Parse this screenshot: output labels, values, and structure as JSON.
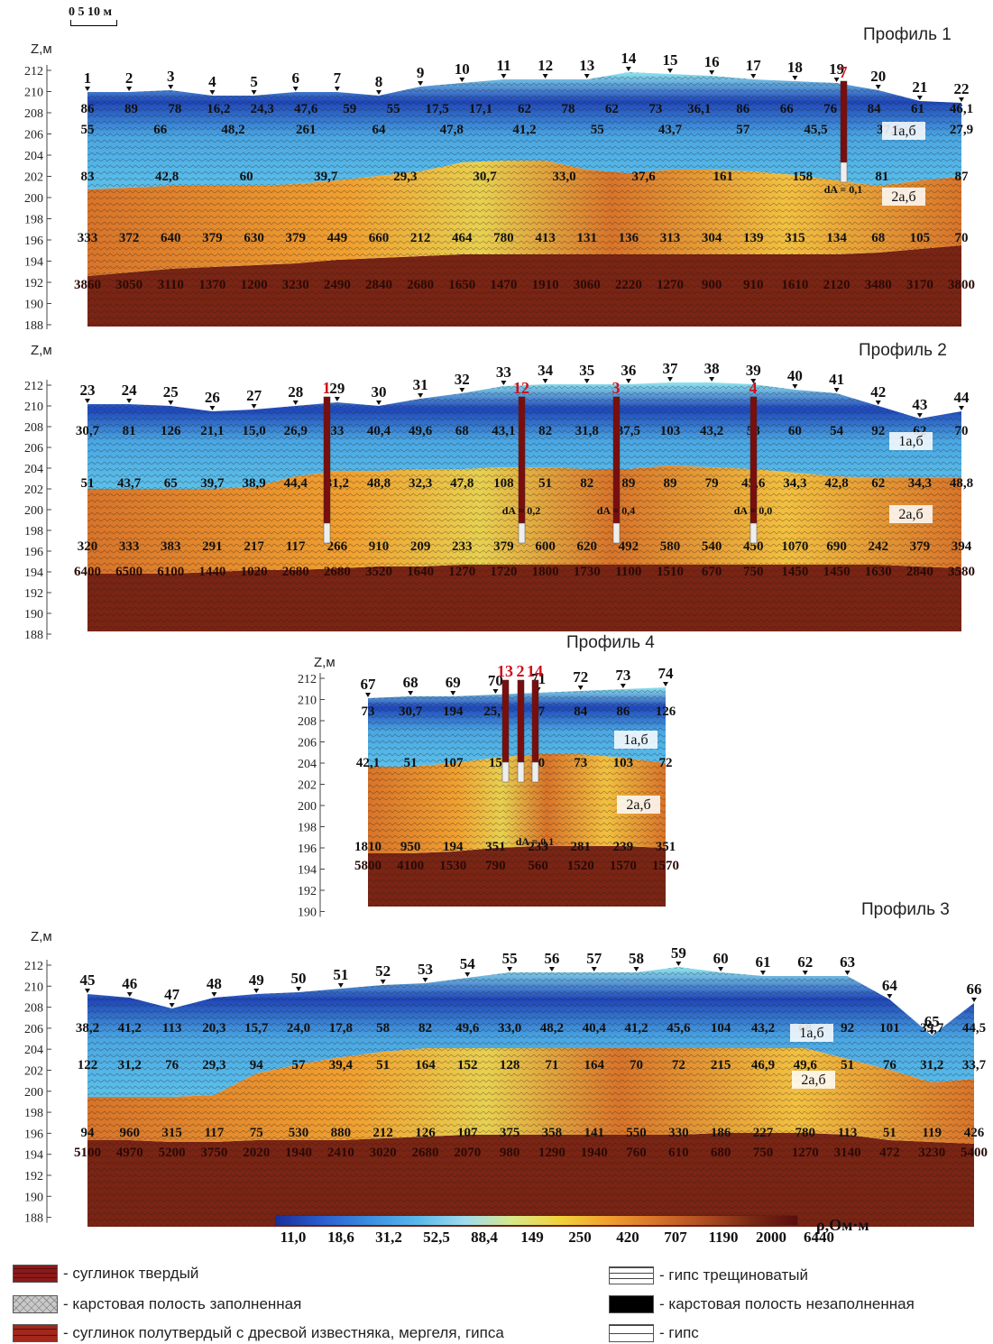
{
  "scale": {
    "label": "0  5 10 м"
  },
  "z_label": "Z,м",
  "profiles": [
    {
      "id": "p1",
      "title": "Профиль 1",
      "ticks": [
        "212",
        "210",
        "208",
        "206",
        "204",
        "202",
        "200",
        "198",
        "196",
        "194",
        "192",
        "190",
        "188"
      ],
      "stations": [
        "1",
        "2",
        "3",
        "4",
        "5",
        "6",
        "7",
        "8",
        "9",
        "10",
        "11",
        "12",
        "13",
        "14",
        "15",
        "16",
        "17",
        "18",
        "19",
        "20",
        "21",
        "22"
      ],
      "wells": [
        {
          "label": "7",
          "da": "dA = 0,1"
        }
      ],
      "layers": [
        "1а,б",
        "2а,б"
      ],
      "row1": [
        "86",
        "89",
        "78",
        "16,2",
        "24,3",
        "47,6",
        "59",
        "55",
        "17,5",
        "17,1",
        "62",
        "78",
        "62",
        "73",
        "36,1",
        "86",
        "66",
        "76",
        "84",
        "61",
        "46,1"
      ],
      "row2": [
        "55",
        "66",
        "48,2",
        "261",
        "64",
        "47,8",
        "41,2",
        "55",
        "43,7",
        "57",
        "45,5",
        "37,5",
        "27,9"
      ],
      "row3": [
        "83",
        "42,8",
        "60",
        "39,7",
        "29,3",
        "30,7",
        "33,0",
        "37,6",
        "161",
        "158",
        "81",
        "87"
      ],
      "row4": [
        "333",
        "372",
        "640",
        "379",
        "630",
        "379",
        "449",
        "660",
        "212",
        "464",
        "780",
        "413",
        "131",
        "136",
        "313",
        "304",
        "139",
        "315",
        "134",
        "68",
        "105",
        "70"
      ],
      "row5": [
        "3860",
        "3050",
        "3110",
        "1370",
        "1200",
        "3230",
        "2490",
        "2840",
        "2680",
        "1650",
        "1470",
        "1910",
        "3060",
        "2220",
        "1270",
        "900",
        "910",
        "1610",
        "2120",
        "3480",
        "3170",
        "3800"
      ]
    },
    {
      "id": "p2",
      "title": "Профиль 2",
      "ticks": [
        "212",
        "210",
        "208",
        "206",
        "204",
        "202",
        "200",
        "198",
        "196",
        "194",
        "192",
        "190",
        "188"
      ],
      "stations": [
        "23",
        "24",
        "25",
        "26",
        "27",
        "28",
        "29",
        "30",
        "31",
        "32",
        "33",
        "34",
        "35",
        "36",
        "37",
        "38",
        "39",
        "40",
        "41",
        "42",
        "43",
        "44"
      ],
      "wells": [
        {
          "label": "1",
          "da": ""
        },
        {
          "label": "12",
          "da": "dA = 0,2"
        },
        {
          "label": "3",
          "da": "dA = 0,4"
        },
        {
          "label": "4",
          "da": "dA = 0,0"
        }
      ],
      "layers": [
        "1а,б",
        "2а,б"
      ],
      "row1": [
        "30,7",
        "81",
        "126",
        "21,1",
        "15,0",
        "26,9",
        "33",
        "40,4",
        "49,6",
        "68",
        "43,1",
        "82",
        "31,8",
        "37,5",
        "103",
        "43,2",
        "58",
        "60",
        "54",
        "92",
        "62",
        "70"
      ],
      "row2": [
        "51",
        "43,7",
        "65",
        "39,7",
        "38,9",
        "44,4",
        "31,2",
        "48,8",
        "32,3",
        "47,8",
        "108",
        "51",
        "82",
        "89",
        "89",
        "79",
        "45,6",
        "34,3",
        "42,8",
        "62",
        "34,3",
        "48,8"
      ],
      "row4": [
        "320",
        "333",
        "383",
        "291",
        "217",
        "117",
        "266",
        "910",
        "209",
        "233",
        "379",
        "600",
        "620",
        "492",
        "580",
        "540",
        "450",
        "1070",
        "690",
        "242",
        "379",
        "394"
      ],
      "row5": [
        "6400",
        "6500",
        "6100",
        "1440",
        "1020",
        "2680",
        "2680",
        "3520",
        "1640",
        "1270",
        "1720",
        "1800",
        "1730",
        "1100",
        "1510",
        "670",
        "750",
        "1450",
        "1450",
        "1630",
        "2840",
        "3580"
      ]
    },
    {
      "id": "p4",
      "title": "Профиль 4",
      "ticks": [
        "212",
        "210",
        "208",
        "206",
        "204",
        "202",
        "200",
        "198",
        "196",
        "194",
        "192",
        "190"
      ],
      "stations": [
        "67",
        "68",
        "69",
        "70",
        "71",
        "72",
        "73",
        "74"
      ],
      "wells": [
        {
          "label": "13",
          "da": ""
        },
        {
          "label": "2",
          "da": ""
        },
        {
          "label": "14",
          "da": "dA = 0,1"
        }
      ],
      "layers": [
        "1а,б",
        "2а,б"
      ],
      "row1": [
        "73",
        "30,7",
        "194",
        "25,7",
        "17",
        "84",
        "86",
        "126"
      ],
      "row2": [
        "42,1",
        "51",
        "107",
        "15",
        "10",
        "73",
        "103",
        "72"
      ],
      "row4": [
        "1810",
        "950",
        "194",
        "351",
        "233",
        "281",
        "239",
        "351"
      ],
      "row5": [
        "5800",
        "4100",
        "1530",
        "790",
        "560",
        "1520",
        "1570",
        "1570"
      ]
    },
    {
      "id": "p3",
      "title": "Профиль 3",
      "ticks": [
        "212",
        "210",
        "208",
        "206",
        "204",
        "202",
        "200",
        "198",
        "196",
        "194",
        "192",
        "190",
        "188"
      ],
      "stations": [
        "45",
        "46",
        "47",
        "48",
        "49",
        "50",
        "51",
        "52",
        "53",
        "54",
        "55",
        "56",
        "57",
        "58",
        "59",
        "60",
        "61",
        "62",
        "63",
        "64",
        "65",
        "66"
      ],
      "wells": [],
      "layers": [
        "1а,б",
        "2а,б"
      ],
      "row1": [
        "38,2",
        "41,2",
        "113",
        "20,3",
        "15,7",
        "24,0",
        "17,8",
        "58",
        "82",
        "49,6",
        "33,0",
        "48,2",
        "40,4",
        "41,2",
        "45,6",
        "104",
        "43,2",
        "68",
        "92",
        "101",
        "39,7",
        "44,5"
      ],
      "row2": [
        "122",
        "31,2",
        "76",
        "29,3",
        "94",
        "57",
        "39,4",
        "51",
        "164",
        "152",
        "128",
        "71",
        "164",
        "70",
        "72",
        "215",
        "46,9",
        "49,6",
        "51",
        "76",
        "31,2",
        "33,7"
      ],
      "row4": [
        "94",
        "960",
        "315",
        "117",
        "75",
        "530",
        "880",
        "212",
        "126",
        "107",
        "375",
        "358",
        "141",
        "550",
        "330",
        "186",
        "227",
        "780",
        "113",
        "51",
        "119",
        "426"
      ],
      "row5": [
        "5100",
        "4970",
        "5200",
        "3750",
        "2020",
        "1940",
        "2410",
        "3020",
        "2680",
        "2070",
        "980",
        "1290",
        "1940",
        "760",
        "610",
        "680",
        "750",
        "1270",
        "3140",
        "472",
        "3230",
        "5400"
      ]
    }
  ],
  "colorbar": {
    "labels": [
      "11,0",
      "18,6",
      "31,2",
      "52,5",
      "88,4",
      "149",
      "250",
      "420",
      "707",
      "1190",
      "2000",
      "6440"
    ],
    "unit": "ρ,Ом·м",
    "colors": [
      "#1a2f9a",
      "#2a5fd0",
      "#3d8fe0",
      "#5ab8ea",
      "#9fdcec",
      "#d8e88a",
      "#f2d23a",
      "#f0a030",
      "#d8742a",
      "#b04e22",
      "#7a2a14",
      "#5a0e0e"
    ]
  },
  "legend": [
    {
      "icon": "hard-loam-swatch",
      "label": "- суглинок твердый",
      "color": "#8b1a1a"
    },
    {
      "icon": "filled-karst-swatch",
      "label": "- карстовая полость заполненная",
      "color": "#bdbdbd"
    },
    {
      "icon": "semi-hard-loam-swatch",
      "label": "- суглинок полутвердый с дресвой известняка, мергеля, гипса",
      "color": "#a0281c"
    },
    {
      "icon": "fractured-gypsum-swatch",
      "label": "- гипс трещиноватый",
      "color": "#ffffff"
    },
    {
      "icon": "empty-karst-swatch",
      "label": "- карстовая полость незаполненная",
      "color": "#000000"
    },
    {
      "icon": "gypsum-swatch",
      "label": "- гипс",
      "color": "#ffffff"
    }
  ]
}
